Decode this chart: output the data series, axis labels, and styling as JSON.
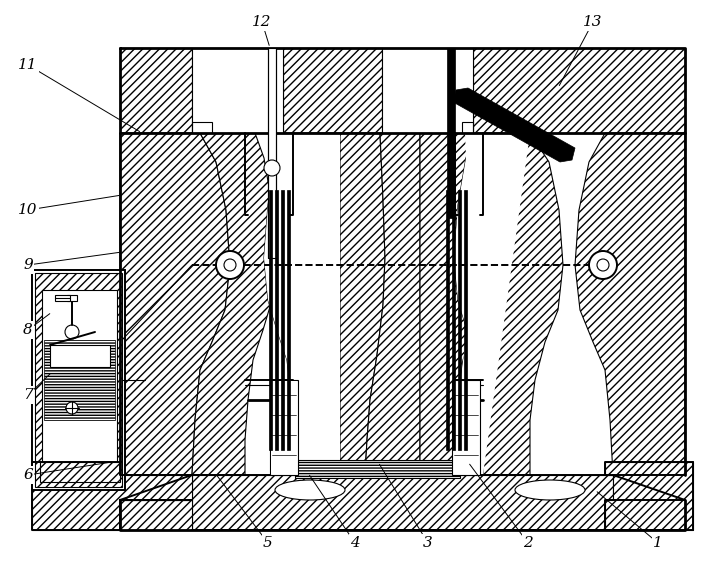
{
  "figsize": [
    7.25,
    5.8
  ],
  "dpi": 100,
  "background_color": "#ffffff",
  "line_color": "#000000",
  "label_info": [
    [
      "1",
      658,
      543,
      595,
      490
    ],
    [
      "2",
      528,
      543,
      468,
      462
    ],
    [
      "3",
      428,
      543,
      378,
      462
    ],
    [
      "4",
      355,
      543,
      308,
      473
    ],
    [
      "5",
      268,
      543,
      215,
      473
    ],
    [
      "6",
      28,
      475,
      112,
      462
    ],
    [
      "7",
      28,
      395,
      52,
      372
    ],
    [
      "8",
      28,
      330,
      52,
      312
    ],
    [
      "9",
      28,
      265,
      122,
      252
    ],
    [
      "10",
      28,
      210,
      122,
      195
    ],
    [
      "11",
      28,
      65,
      142,
      133
    ],
    [
      "12",
      262,
      22,
      270,
      48
    ],
    [
      "13",
      593,
      22,
      558,
      88
    ]
  ]
}
